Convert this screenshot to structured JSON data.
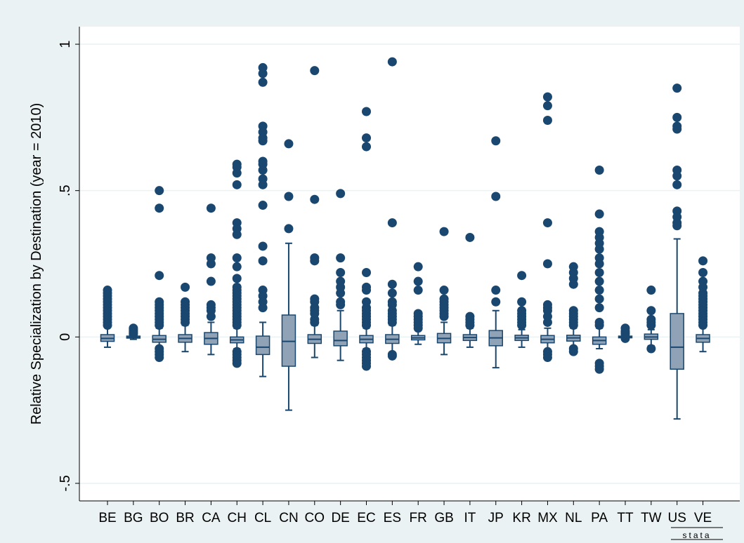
{
  "chart_data": {
    "type": "boxplot",
    "title": "",
    "xlabel": "",
    "ylabel": "Relative Specialization by Destination (year = 2010)",
    "ylim": [
      -0.56,
      1.06
    ],
    "yticks": [
      -0.5,
      0,
      0.5,
      1
    ],
    "ytick_labels": [
      "-.5",
      "0",
      ".5",
      "1"
    ],
    "grid": true,
    "legend": "none",
    "watermark": "stata",
    "colors": {
      "box_fill": "#90a3b6",
      "line": "#1a476f",
      "outlier": "#1a476f",
      "plot_bg": "#ffffff",
      "outer_bg": "#eaf2f3",
      "grid": "#eaf2f3"
    },
    "categories": [
      "BE",
      "BG",
      "BO",
      "BR",
      "CA",
      "CH",
      "CL",
      "CN",
      "CO",
      "DE",
      "EC",
      "ES",
      "FR",
      "GB",
      "IT",
      "JP",
      "KR",
      "MX",
      "NL",
      "PA",
      "TT",
      "TW",
      "US",
      "VE"
    ],
    "boxes": [
      {
        "q1": -0.015,
        "median": -0.005,
        "q3": 0.008,
        "whisker_low": -0.035,
        "whisker_high": 0.035,
        "outliers": [
          0.16,
          0.15,
          0.14,
          0.13,
          0.12,
          0.11,
          0.1,
          0.09,
          0.08,
          0.07,
          0.06,
          0.05,
          0.04
        ]
      },
      {
        "q1": -0.004,
        "median": -0.001,
        "q3": 0.003,
        "whisker_low": -0.008,
        "whisker_high": 0.008,
        "outliers": [
          0.03,
          0.025,
          0.02,
          0.015,
          0.01
        ]
      },
      {
        "q1": -0.018,
        "median": -0.008,
        "q3": 0.005,
        "whisker_low": -0.035,
        "whisker_high": 0.03,
        "outliers": [
          0.5,
          0.44,
          0.21,
          0.12,
          0.11,
          0.1,
          0.09,
          0.08,
          0.07,
          0.06,
          0.05,
          0.04,
          -0.04,
          -0.05,
          -0.06,
          -0.07
        ]
      },
      {
        "q1": -0.018,
        "median": -0.005,
        "q3": 0.008,
        "whisker_low": -0.05,
        "whisker_high": 0.04,
        "outliers": [
          0.17,
          0.12,
          0.11,
          0.1,
          0.09,
          0.08,
          0.07,
          0.06,
          0.05
        ]
      },
      {
        "q1": -0.025,
        "median": -0.005,
        "q3": 0.015,
        "whisker_low": -0.06,
        "whisker_high": 0.05,
        "outliers": [
          0.44,
          0.27,
          0.25,
          0.19,
          0.11,
          0.1,
          0.09,
          0.07
        ]
      },
      {
        "q1": -0.02,
        "median": -0.01,
        "q3": 0.0,
        "whisker_low": -0.04,
        "whisker_high": 0.03,
        "outliers": [
          0.59,
          0.58,
          0.56,
          0.52,
          0.39,
          0.37,
          0.35,
          0.27,
          0.24,
          0.2,
          0.17,
          0.16,
          0.15,
          0.14,
          0.13,
          0.12,
          0.11,
          0.1,
          0.09,
          0.08,
          0.07,
          0.06,
          0.05,
          0.04,
          -0.05,
          -0.06,
          -0.07,
          -0.08,
          -0.09
        ]
      },
      {
        "q1": -0.06,
        "median": -0.035,
        "q3": 0.003,
        "whisker_low": -0.135,
        "whisker_high": 0.05,
        "outliers": [
          0.92,
          0.9,
          0.87,
          0.72,
          0.7,
          0.68,
          0.67,
          0.6,
          0.59,
          0.57,
          0.54,
          0.52,
          0.45,
          0.31,
          0.26,
          0.16,
          0.14,
          0.12,
          0.1
        ]
      },
      {
        "q1": -0.1,
        "median": -0.015,
        "q3": 0.075,
        "whisker_low": -0.25,
        "whisker_high": 0.32,
        "outliers": [
          0.66,
          0.48,
          0.37
        ]
      },
      {
        "q1": -0.022,
        "median": -0.008,
        "q3": 0.008,
        "whisker_low": -0.07,
        "whisker_high": 0.04,
        "outliers": [
          0.91,
          0.47,
          0.27,
          0.26,
          0.13,
          0.12,
          0.1,
          0.09,
          0.08,
          0.06,
          0.05
        ]
      },
      {
        "q1": -0.03,
        "median": -0.012,
        "q3": 0.02,
        "whisker_low": -0.08,
        "whisker_high": 0.09,
        "outliers": [
          0.49,
          0.27,
          0.22,
          0.19,
          0.17,
          0.15,
          0.12,
          0.11
        ]
      },
      {
        "q1": -0.02,
        "median": -0.008,
        "q3": 0.005,
        "whisker_low": -0.04,
        "whisker_high": 0.03,
        "outliers": [
          0.77,
          0.68,
          0.65,
          0.22,
          0.17,
          0.16,
          0.12,
          0.1,
          0.09,
          0.08,
          0.07,
          0.06,
          0.05,
          0.04,
          -0.05,
          -0.06,
          -0.07,
          -0.08,
          -0.09,
          -0.1
        ]
      },
      {
        "q1": -0.022,
        "median": -0.008,
        "q3": 0.008,
        "whisker_low": -0.055,
        "whisker_high": 0.04,
        "outliers": [
          0.94,
          0.39,
          0.18,
          0.15,
          0.12,
          0.11,
          0.09,
          0.08,
          0.07,
          0.06,
          0.05,
          -0.06,
          -0.065
        ]
      },
      {
        "q1": -0.01,
        "median": -0.003,
        "q3": 0.005,
        "whisker_low": -0.025,
        "whisker_high": 0.025,
        "outliers": [
          0.24,
          0.19,
          0.16,
          0.08,
          0.07,
          0.06,
          0.05,
          0.04,
          0.03
        ]
      },
      {
        "q1": -0.02,
        "median": -0.005,
        "q3": 0.012,
        "whisker_low": -0.06,
        "whisker_high": 0.05,
        "outliers": [
          0.36,
          0.16,
          0.13,
          0.12,
          0.11,
          0.1,
          0.09,
          0.08,
          0.07
        ]
      },
      {
        "q1": -0.012,
        "median": -0.002,
        "q3": 0.008,
        "whisker_low": -0.035,
        "whisker_high": 0.03,
        "outliers": [
          0.34,
          0.07,
          0.06,
          0.05,
          0.04
        ]
      },
      {
        "q1": -0.03,
        "median": -0.003,
        "q3": 0.022,
        "whisker_low": -0.105,
        "whisker_high": 0.09,
        "outliers": [
          0.67,
          0.48,
          0.16,
          0.12
        ]
      },
      {
        "q1": -0.012,
        "median": -0.003,
        "q3": 0.006,
        "whisker_low": -0.035,
        "whisker_high": 0.025,
        "outliers": [
          0.21,
          0.12,
          0.09,
          0.08,
          0.07,
          0.06,
          0.05,
          0.04
        ]
      },
      {
        "q1": -0.02,
        "median": -0.008,
        "q3": 0.005,
        "whisker_low": -0.045,
        "whisker_high": 0.03,
        "outliers": [
          0.82,
          0.79,
          0.74,
          0.39,
          0.25,
          0.11,
          0.1,
          0.09,
          0.07,
          0.05,
          -0.05,
          -0.06,
          -0.07
        ]
      },
      {
        "q1": -0.014,
        "median": -0.003,
        "q3": 0.006,
        "whisker_low": -0.035,
        "whisker_high": 0.03,
        "outliers": [
          0.24,
          0.22,
          0.2,
          0.18,
          0.09,
          0.08,
          0.07,
          0.06,
          0.05,
          0.04,
          -0.04,
          -0.05
        ]
      },
      {
        "q1": -0.025,
        "median": -0.012,
        "q3": 0.0,
        "whisker_low": -0.04,
        "whisker_high": 0.03,
        "outliers": [
          0.57,
          0.42,
          0.36,
          0.34,
          0.32,
          0.3,
          0.27,
          0.25,
          0.22,
          0.19,
          0.16,
          0.13,
          0.1,
          0.05,
          0.04,
          -0.09,
          -0.1,
          -0.11
        ]
      },
      {
        "q1": -0.003,
        "median": 0.0,
        "q3": 0.003,
        "whisker_low": -0.007,
        "whisker_high": 0.007,
        "outliers": [
          0.03,
          0.02,
          0.015,
          0.01,
          -0.005
        ]
      },
      {
        "q1": -0.008,
        "median": 0.0,
        "q3": 0.01,
        "whisker_low": -0.03,
        "whisker_high": 0.025,
        "outliers": [
          0.16,
          0.09,
          0.06,
          0.05,
          0.04,
          -0.04
        ]
      },
      {
        "q1": -0.11,
        "median": -0.035,
        "q3": 0.08,
        "whisker_low": -0.28,
        "whisker_high": 0.335,
        "outliers": [
          0.85,
          0.75,
          0.72,
          0.71,
          0.57,
          0.55,
          0.52,
          0.43,
          0.41,
          0.39,
          0.38
        ]
      },
      {
        "q1": -0.018,
        "median": -0.005,
        "q3": 0.008,
        "whisker_low": -0.05,
        "whisker_high": 0.04,
        "outliers": [
          0.26,
          0.22,
          0.19,
          0.17,
          0.15,
          0.14,
          0.13,
          0.12,
          0.11,
          0.1,
          0.09,
          0.08,
          0.07,
          0.06,
          0.05,
          0.04
        ]
      }
    ]
  }
}
